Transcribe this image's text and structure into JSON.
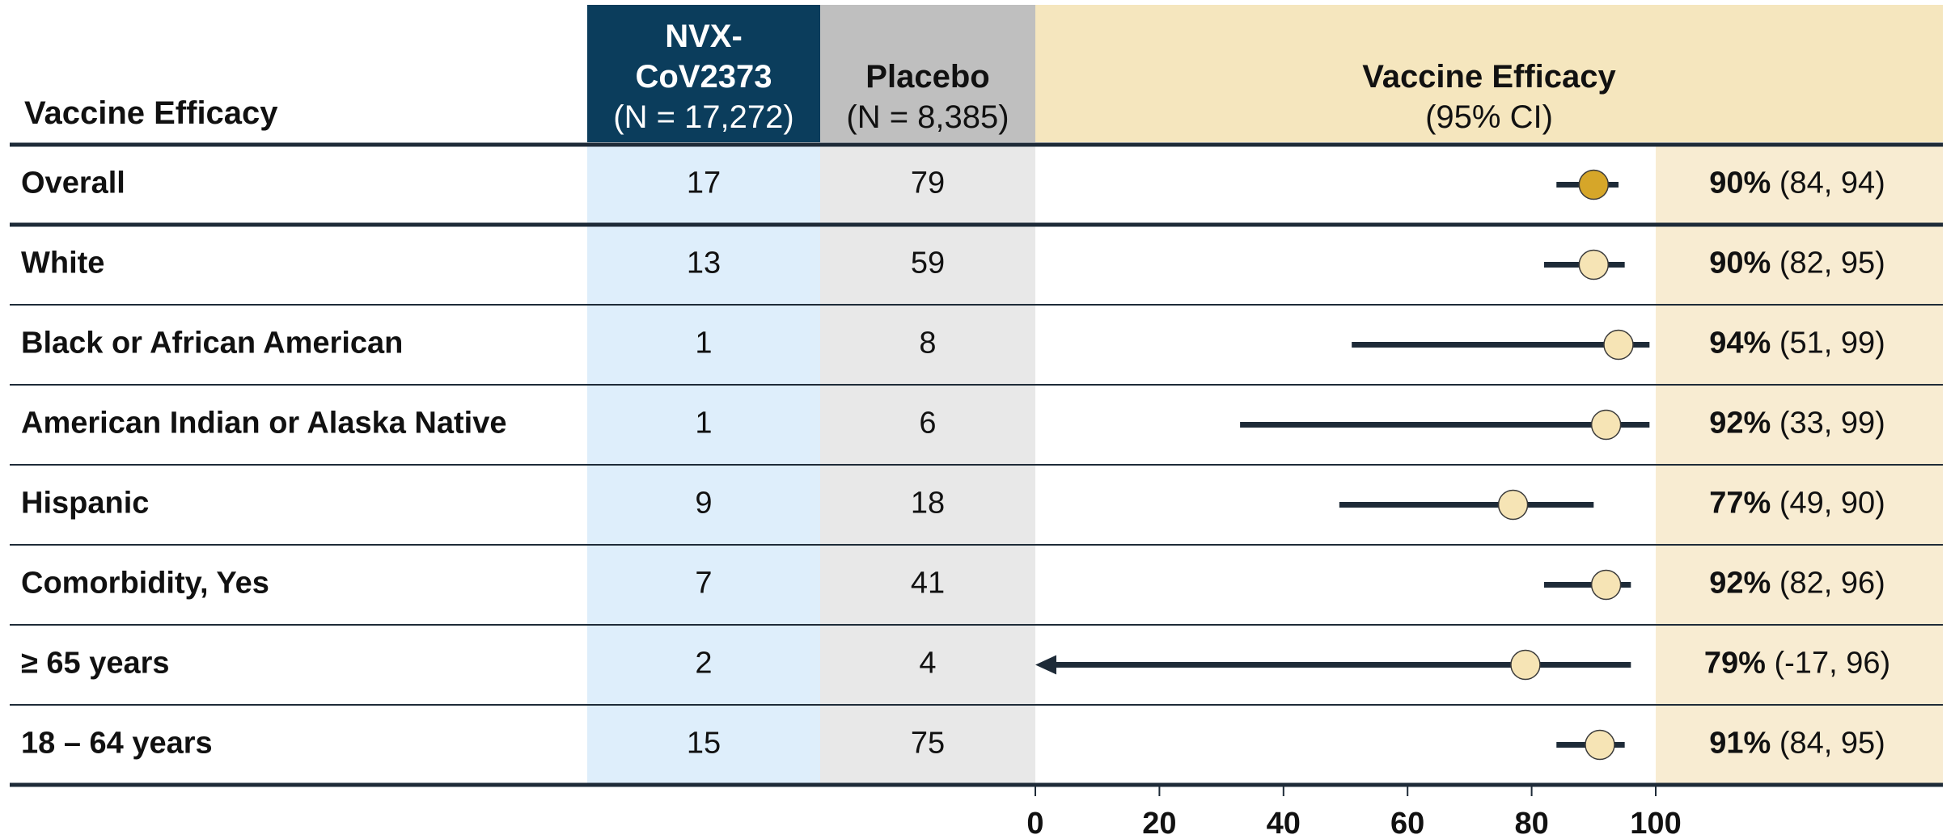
{
  "chart_data": {
    "type": "forest",
    "label_header": "Vaccine Efficacy",
    "vaccine_header": "NVX-CoV2373",
    "vaccine_n": "(N = 17,272)",
    "placebo_header": "Placebo",
    "placebo_n": "(N = 8,385)",
    "efficacy_header": "Vaccine Efficacy",
    "efficacy_subheader": "(95% CI)",
    "categories": [
      "Overall",
      "White",
      "Black or African American",
      "American Indian or Alaska Native",
      "Hispanic",
      "Comorbidity, Yes",
      "≥ 65 years",
      "18 – 64 years"
    ],
    "vaccine_cases": [
      17,
      13,
      1,
      1,
      9,
      7,
      2,
      15
    ],
    "placebo_cases": [
      79,
      59,
      8,
      6,
      18,
      41,
      4,
      75
    ],
    "values": [
      90,
      90,
      94,
      92,
      77,
      92,
      79,
      91
    ],
    "value_labels": [
      "90%",
      "90%",
      "94%",
      "92%",
      "77%",
      "92%",
      "79%",
      "91%"
    ],
    "ci_low": [
      84,
      82,
      51,
      33,
      49,
      82,
      -17,
      84
    ],
    "ci_high": [
      94,
      95,
      99,
      99,
      90,
      96,
      96,
      95
    ],
    "ci_labels": [
      "(84, 94)",
      "(82, 95)",
      "(51, 99)",
      "(33, 99)",
      "(49, 90)",
      "(82, 96)",
      "(-17, 96)",
      "(84, 95)"
    ],
    "marker_colors": [
      "#d6a629",
      "#f6e4b5",
      "#f6e4b5",
      "#f6e4b5",
      "#f6e4b5",
      "#f6e4b5",
      "#f6e4b5",
      "#f6e4b5"
    ],
    "ci_color": "#1e2b38",
    "xlim": [
      0,
      100
    ],
    "xticks": [
      0,
      20,
      40,
      60,
      80,
      100
    ]
  }
}
